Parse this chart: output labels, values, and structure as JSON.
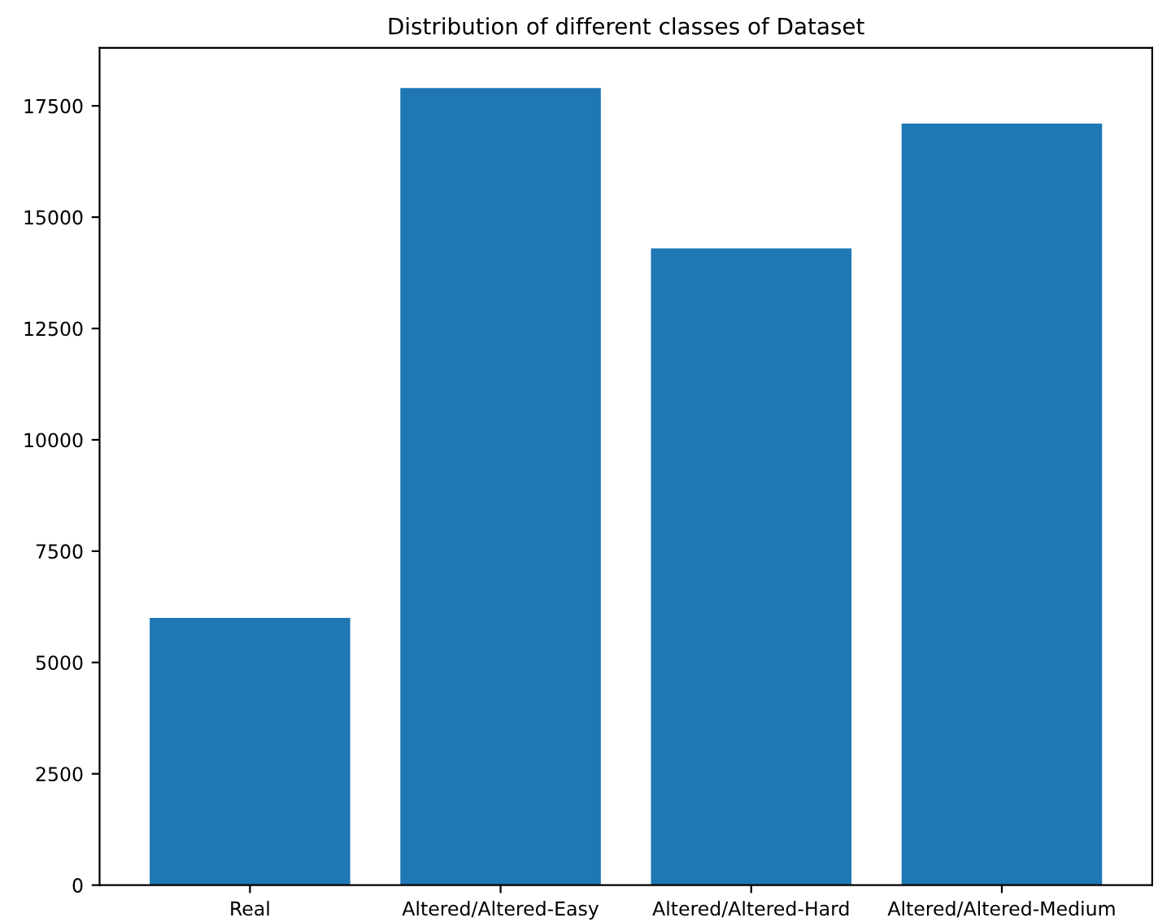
{
  "chart_data": {
    "type": "bar",
    "title": "Distribution of different classes of Dataset",
    "categories": [
      "Real",
      "Altered/Altered-Easy",
      "Altered/Altered-Hard",
      "Altered/Altered-Medium"
    ],
    "values": [
      6000,
      17900,
      14300,
      17100
    ],
    "color": "#1f77b4",
    "ylim": [
      0,
      18800
    ],
    "yticks": [
      0,
      2500,
      5000,
      7500,
      10000,
      12500,
      15000,
      17500
    ],
    "grid": false
  }
}
